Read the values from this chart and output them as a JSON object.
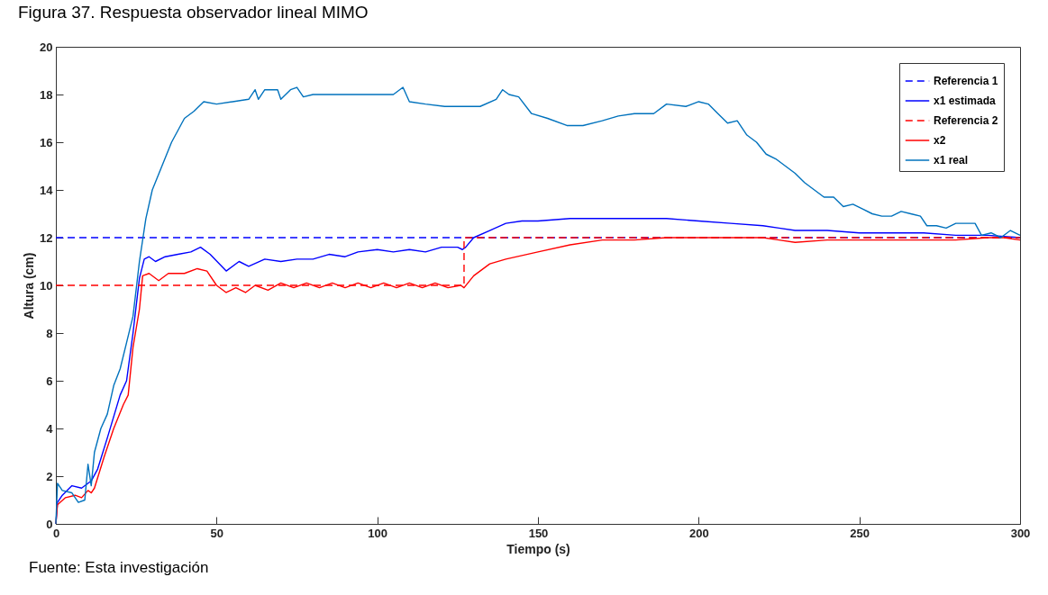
{
  "chart_data": {
    "type": "line",
    "title": "Figura 37. Respuesta observador lineal MIMO",
    "xlabel": "Tiempo (s)",
    "ylabel": "Altura (cm)",
    "annotations": [
      "Fuente: Esta investigación"
    ],
    "xlim": [
      0,
      300
    ],
    "ylim": [
      0,
      20
    ],
    "xticks": [
      0,
      50,
      100,
      150,
      200,
      250,
      300
    ],
    "yticks": [
      0,
      2,
      4,
      6,
      8,
      10,
      12,
      14,
      16,
      18,
      20
    ],
    "grid": false,
    "legend": "top right",
    "series": [
      {
        "name": "Referencia 1",
        "color": "#0000ff",
        "line_style": "dashed",
        "x": [
          0,
          300
        ],
        "values": [
          12,
          12
        ]
      },
      {
        "name": "x1 estimada",
        "color": "#0000ff",
        "line_style": "solid",
        "x": [
          0,
          0.5,
          2,
          5,
          8,
          11,
          13,
          16,
          20,
          22,
          24,
          26,
          27.5,
          29,
          31,
          34,
          38,
          42,
          45,
          48,
          53,
          57,
          60,
          65,
          70,
          75,
          80,
          85,
          90,
          94,
          100,
          105,
          110,
          115,
          120,
          125,
          126.5,
          127.5,
          130,
          135,
          140,
          145,
          150,
          160,
          170,
          180,
          190,
          200,
          210,
          220,
          225,
          230,
          240,
          250,
          260,
          270,
          280,
          290,
          300
        ],
        "values": [
          0,
          0.9,
          1.2,
          1.6,
          1.5,
          1.8,
          2.3,
          3.6,
          5.4,
          6,
          8,
          10.3,
          11.1,
          11.2,
          11,
          11.2,
          11.3,
          11.4,
          11.6,
          11.3,
          10.6,
          11,
          10.8,
          11.1,
          11,
          11.1,
          11.1,
          11.3,
          11.2,
          11.4,
          11.5,
          11.4,
          11.5,
          11.4,
          11.6,
          11.6,
          11.5,
          11.6,
          12,
          12.3,
          12.6,
          12.7,
          12.7,
          12.8,
          12.8,
          12.8,
          12.8,
          12.7,
          12.6,
          12.5,
          12.4,
          12.3,
          12.3,
          12.2,
          12.2,
          12.2,
          12.1,
          12.1,
          12
        ]
      },
      {
        "name": "Referencia 2",
        "color": "#ff0000",
        "line_style": "dashed",
        "x": [
          0,
          127,
          127,
          300
        ],
        "values": [
          10,
          10,
          12,
          12
        ]
      },
      {
        "name": "x2",
        "color": "#ff0000",
        "line_style": "solid",
        "x": [
          0,
          0.5,
          3,
          6,
          8,
          10,
          11,
          12,
          15,
          18,
          21,
          22.5,
          24,
          26,
          27,
          29,
          32,
          35,
          40,
          44,
          47,
          50,
          53,
          56,
          59,
          62,
          66,
          70,
          74,
          78,
          82,
          86,
          90,
          94,
          98,
          102,
          106,
          110,
          114,
          118,
          122,
          126,
          127,
          130,
          135,
          140,
          150,
          160,
          170,
          180,
          190,
          200,
          210,
          220,
          225,
          230,
          240,
          250,
          260,
          270,
          280,
          290,
          295,
          300
        ],
        "values": [
          0,
          0.8,
          1.1,
          1.2,
          1.1,
          1.4,
          1.3,
          1.5,
          2.8,
          4,
          5,
          5.4,
          7.4,
          9,
          10.4,
          10.5,
          10.2,
          10.5,
          10.5,
          10.7,
          10.6,
          10,
          9.7,
          9.9,
          9.7,
          10,
          9.8,
          10.1,
          9.9,
          10.1,
          9.9,
          10.1,
          9.9,
          10.1,
          9.9,
          10.1,
          9.9,
          10.1,
          9.9,
          10.1,
          9.9,
          10,
          9.9,
          10.4,
          10.9,
          11.1,
          11.4,
          11.7,
          11.9,
          11.9,
          12,
          12,
          12,
          12,
          11.9,
          11.8,
          11.9,
          11.9,
          11.9,
          11.9,
          11.9,
          12,
          12,
          11.9
        ]
      },
      {
        "name": "x1 real",
        "color": "#0072bd",
        "line_style": "solid",
        "x": [
          0,
          0.5,
          2,
          5,
          7,
          9,
          10,
          11,
          12,
          14,
          16,
          18,
          20,
          22,
          24,
          26,
          28,
          30,
          33,
          36,
          40,
          43,
          46,
          50,
          55,
          60,
          62,
          63,
          65,
          69,
          70,
          73,
          75,
          77,
          80,
          85,
          90,
          95,
          100,
          105,
          108,
          110,
          115,
          121,
          125,
          132,
          137,
          139,
          141,
          144,
          148,
          153,
          159,
          164,
          170,
          175,
          180,
          186,
          190,
          196,
          200,
          203,
          206,
          209,
          212,
          215,
          218,
          221,
          224,
          227,
          230,
          233,
          236,
          239,
          242,
          245,
          248,
          251,
          254,
          257,
          260,
          263,
          266,
          269,
          271,
          274,
          277,
          280,
          283,
          286,
          288,
          291,
          294,
          297,
          300
        ],
        "values": [
          0,
          1.7,
          1.4,
          1.3,
          0.9,
          1,
          2.5,
          1.6,
          3,
          4,
          4.6,
          5.8,
          6.5,
          7.6,
          8.7,
          11,
          12.8,
          14,
          15,
          16,
          17,
          17.3,
          17.7,
          17.6,
          17.7,
          17.8,
          18.2,
          17.8,
          18.2,
          18.2,
          17.8,
          18.2,
          18.3,
          17.9,
          18,
          18,
          18,
          18,
          18,
          18,
          18.3,
          17.7,
          17.6,
          17.5,
          17.5,
          17.5,
          17.8,
          18.2,
          18,
          17.9,
          17.2,
          17,
          16.7,
          16.7,
          16.9,
          17.1,
          17.2,
          17.2,
          17.6,
          17.5,
          17.7,
          17.6,
          17.2,
          16.8,
          16.9,
          16.3,
          16,
          15.5,
          15.3,
          15,
          14.7,
          14.3,
          14,
          13.7,
          13.7,
          13.3,
          13.4,
          13.2,
          13,
          12.9,
          12.9,
          13.1,
          13,
          12.9,
          12.5,
          12.5,
          12.4,
          12.6,
          12.6,
          12.6,
          12.1,
          12.2,
          12,
          12.3,
          12.1
        ]
      }
    ]
  }
}
